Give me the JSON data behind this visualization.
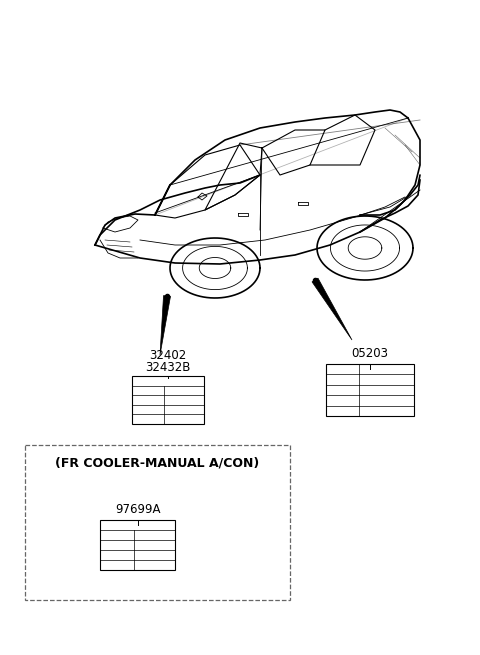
{
  "bg_color": "#ffffff",
  "line_color": "#000000",
  "dashed_color": "#666666",
  "label_32402": "32402\n32432B",
  "label_05203": "05203",
  "label_97699": "97699A",
  "dashed_box_label": "(FR COOLER-MANUAL A/CON)",
  "fig_w": 4.8,
  "fig_h": 6.55,
  "dpi": 100
}
